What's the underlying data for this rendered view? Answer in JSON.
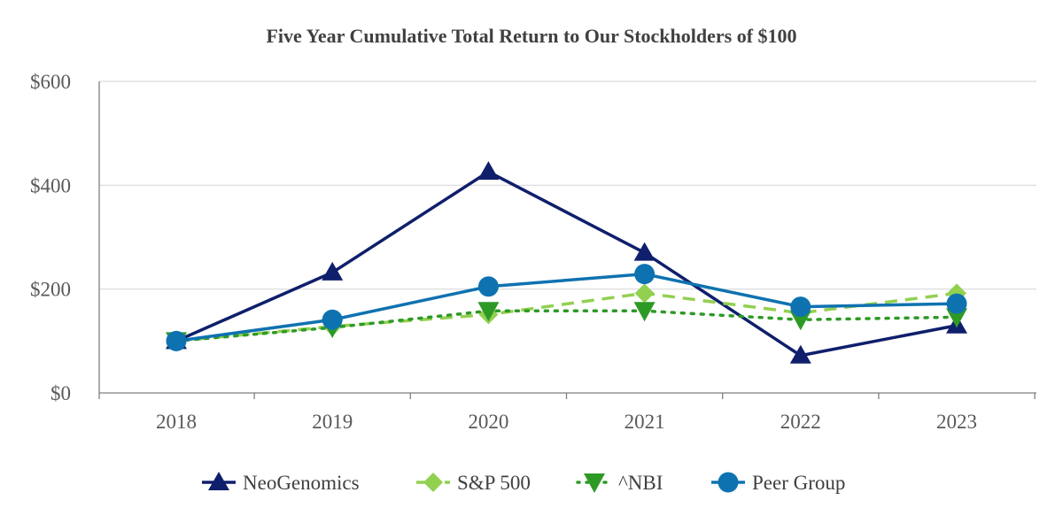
{
  "chart_data": {
    "type": "line",
    "title": "Five Year Cumulative Total Return to Our Stockholders of $100",
    "xlabel": "",
    "ylabel": "",
    "categories": [
      "2018",
      "2019",
      "2020",
      "2021",
      "2022",
      "2023"
    ],
    "ylim": [
      0,
      600
    ],
    "yticks": [
      0,
      200,
      400,
      600
    ],
    "ytick_labels": [
      "$0",
      "$200",
      "$400",
      "$600"
    ],
    "grid": true,
    "legend_position": "bottom",
    "series": [
      {
        "name": "NeoGenomics",
        "values": [
          100,
          232,
          426,
          270,
          72,
          130
        ],
        "color": "#0f1f6b",
        "line_style": "solid",
        "marker": "triangle-up"
      },
      {
        "name": "S&P 500",
        "values": [
          100,
          128,
          151,
          192,
          154,
          192
        ],
        "color": "#92d050",
        "line_style": "dashed",
        "marker": "diamond"
      },
      {
        "name": "^NBI",
        "values": [
          100,
          126,
          158,
          158,
          141,
          146
        ],
        "color": "#2e9a26",
        "line_style": "dotted",
        "marker": "triangle-down"
      },
      {
        "name": "Peer Group",
        "values": [
          100,
          141,
          205,
          229,
          166,
          172
        ],
        "color": "#0f72b0",
        "line_style": "solid",
        "marker": "circle"
      }
    ]
  }
}
